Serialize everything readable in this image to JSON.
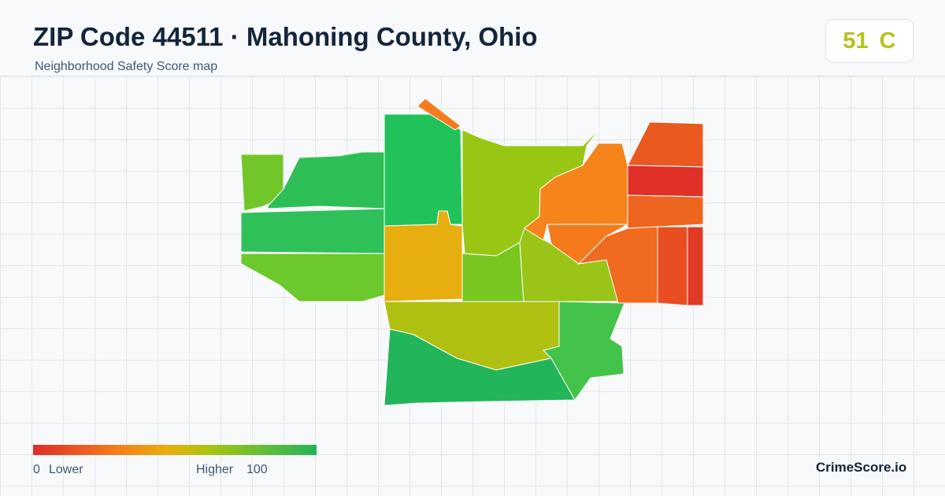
{
  "header": {
    "title": "ZIP Code 44511 · Mahoning County, Ohio",
    "subtitle": "Neighborhood Safety Score map"
  },
  "score": {
    "value": 51,
    "grade": "C"
  },
  "legend": {
    "min": 0,
    "min_label": "Lower",
    "max_label": "Higher",
    "max": 100
  },
  "brand": "CrimeScore.io"
}
